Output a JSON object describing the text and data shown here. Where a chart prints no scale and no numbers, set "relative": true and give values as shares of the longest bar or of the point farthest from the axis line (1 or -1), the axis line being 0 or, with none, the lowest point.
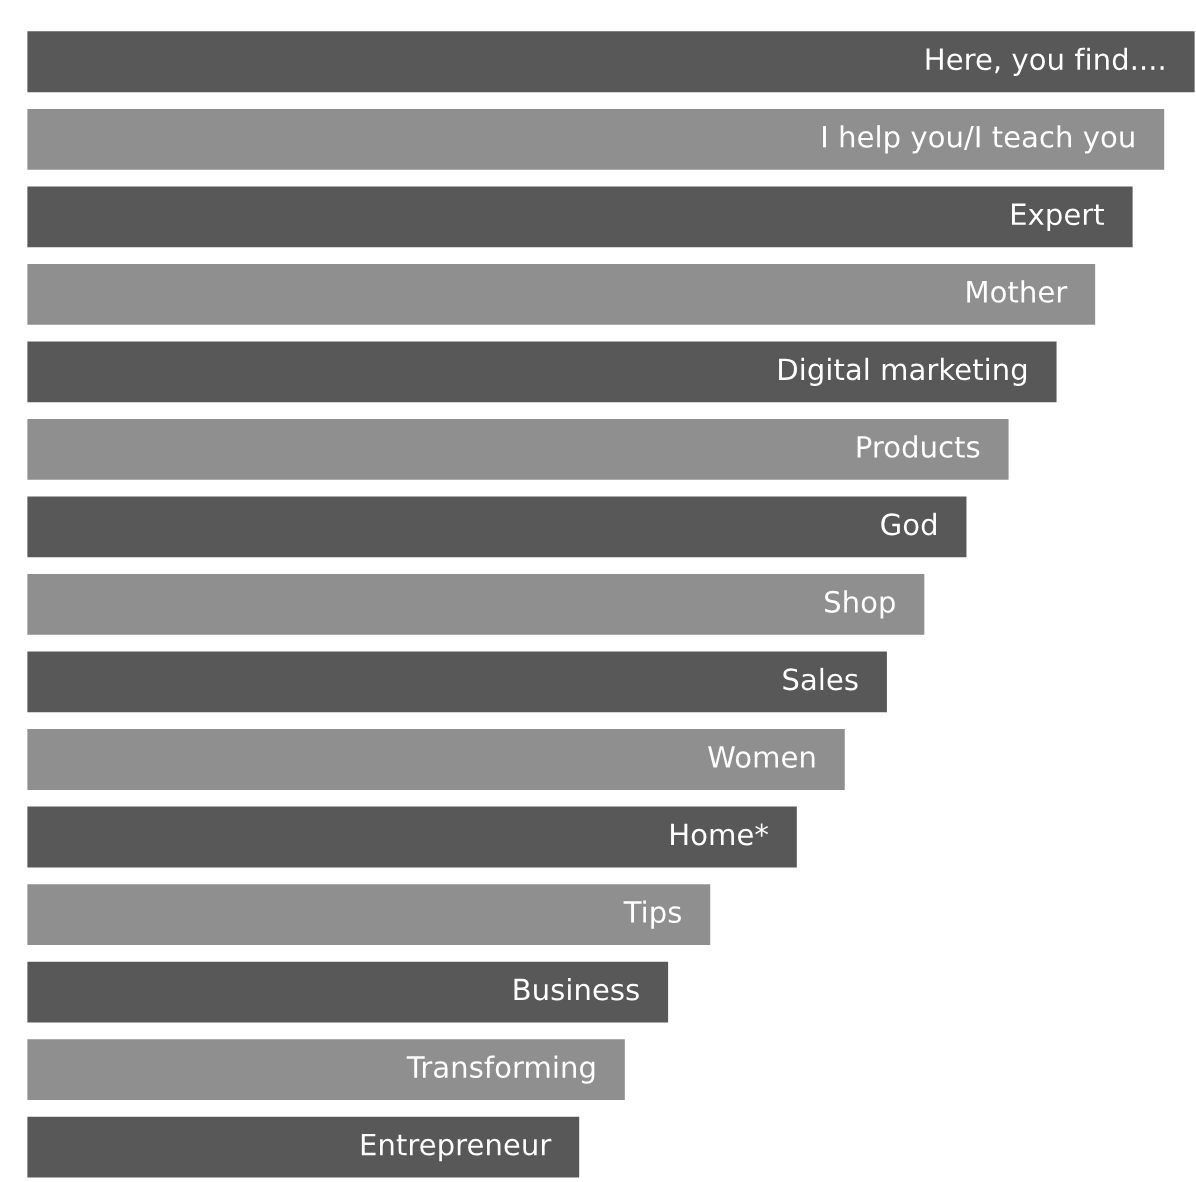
{
  "chart_data": {
    "type": "bar",
    "orientation": "horizontal",
    "relative": true,
    "tick_labels": false,
    "legend": false,
    "categories": [
      "Here, you find....",
      "I help you/I teach you",
      "Expert",
      "Mother",
      "Digital marketing",
      "Products",
      "God",
      "Shop",
      "Sales",
      "Women",
      "Home*",
      "Tips",
      "Business",
      "Transforming",
      "Entrepreneur"
    ],
    "values": [
      1,
      0.974,
      0.947,
      0.915,
      0.882,
      0.841,
      0.805,
      0.769,
      0.737,
      0.701,
      0.66,
      0.586,
      0.55,
      0.513,
      0.474
    ],
    "colors": [
      "#585858",
      "#8f8f8f",
      "#585858",
      "#8f8f8f",
      "#585858",
      "#8f8f8f",
      "#585858",
      "#8f8f8f",
      "#585858",
      "#8f8f8f",
      "#585858",
      "#8f8f8f",
      "#585858",
      "#8f8f8f",
      "#585858"
    ]
  }
}
